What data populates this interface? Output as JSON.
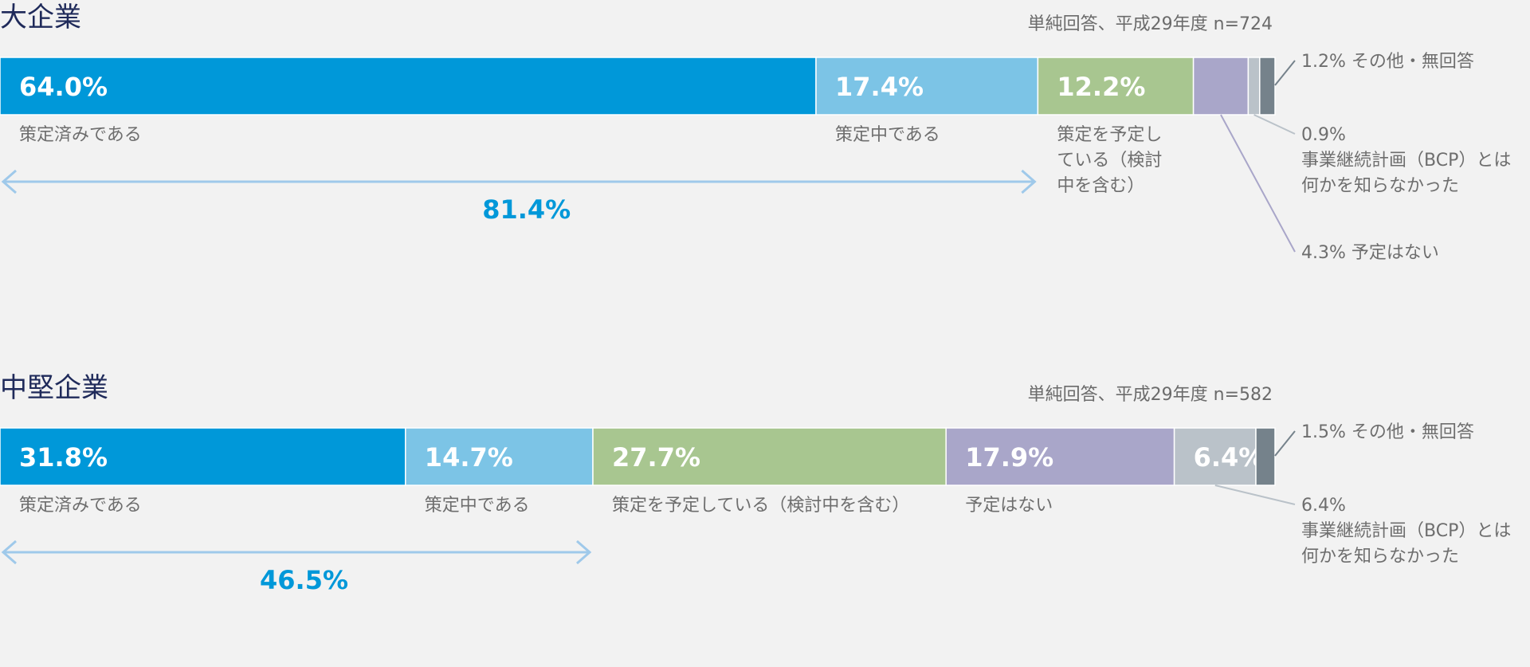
{
  "chart_data": [
    {
      "type": "bar",
      "title": "大企業",
      "note": "単純回答、平成29年度 n=724",
      "unit": "%",
      "series": [
        {
          "name": "策定済みである",
          "value": 64.0,
          "value_label": "64.0%",
          "color": "#0098d9"
        },
        {
          "name": "策定中である",
          "value": 17.4,
          "value_label": "17.4%",
          "color": "#7cc4e6"
        },
        {
          "name": "策定を予定している（検討中を含む）",
          "value": 12.2,
          "value_label": "12.2%",
          "color": "#a8c690"
        },
        {
          "name": "予定はない",
          "value": 4.3,
          "value_label": "4.3%",
          "color": "#a9a6c9"
        },
        {
          "name": "事業継続計画（BCP）とは何かを知らなかった",
          "value": 0.9,
          "value_label": "0.9%",
          "color": "#bac2c9"
        },
        {
          "name": "その他・無回答",
          "value": 1.2,
          "value_label": "1.2%",
          "color": "#75828b"
        }
      ],
      "inside_labels": [
        {
          "segment": 0,
          "text": "策定済みである"
        },
        {
          "segment": 1,
          "text": "策定中である"
        },
        {
          "segment": 2,
          "lines": [
            "策定を予定し",
            "ている（検討",
            "中を含む）"
          ]
        }
      ],
      "callouts": [
        {
          "segment": 5,
          "lines": [
            "1.2%  その他・無回答"
          ]
        },
        {
          "segment": 4,
          "lines": [
            "0.9%",
            "事業継続計画（BCP）とは",
            "何かを知らなかった"
          ]
        },
        {
          "segment": 3,
          "lines": [
            "4.3%  予定はない"
          ]
        }
      ],
      "bracket": {
        "from_segment": 0,
        "to_segment": 1,
        "label": "81.4%"
      }
    },
    {
      "type": "bar",
      "title": "中堅企業",
      "note": "単純回答、平成29年度 n=582",
      "unit": "%",
      "series": [
        {
          "name": "策定済みである",
          "value": 31.8,
          "value_label": "31.8%",
          "color": "#0098d9"
        },
        {
          "name": "策定中である",
          "value": 14.7,
          "value_label": "14.7%",
          "color": "#7cc4e6"
        },
        {
          "name": "策定を予定している（検討中を含む）",
          "value": 27.7,
          "value_label": "27.7%",
          "color": "#a8c690"
        },
        {
          "name": "予定はない",
          "value": 17.9,
          "value_label": "17.9%",
          "color": "#a9a6c9"
        },
        {
          "name": "事業継続計画（BCP）とは何かを知らなかった",
          "value": 6.4,
          "value_label": "6.4%",
          "color": "#bac2c9"
        },
        {
          "name": "その他・無回答",
          "value": 1.5,
          "value_label": "1.5%",
          "color": "#75828b"
        }
      ],
      "inside_labels": [
        {
          "segment": 0,
          "text": "策定済みである"
        },
        {
          "segment": 1,
          "text": "策定中である"
        },
        {
          "segment": 2,
          "text": "策定を予定している（検討中を含む）"
        },
        {
          "segment": 3,
          "text": "予定はない"
        }
      ],
      "callouts": [
        {
          "segment": 5,
          "lines": [
            "1.5%  その他・無回答"
          ]
        },
        {
          "segment": 4,
          "lines": [
            "6.4%",
            "事業継続計画（BCP）とは",
            "何かを知らなかった"
          ]
        }
      ],
      "bracket": {
        "from_segment": 0,
        "to_segment": 1,
        "label": "46.5%"
      }
    }
  ]
}
